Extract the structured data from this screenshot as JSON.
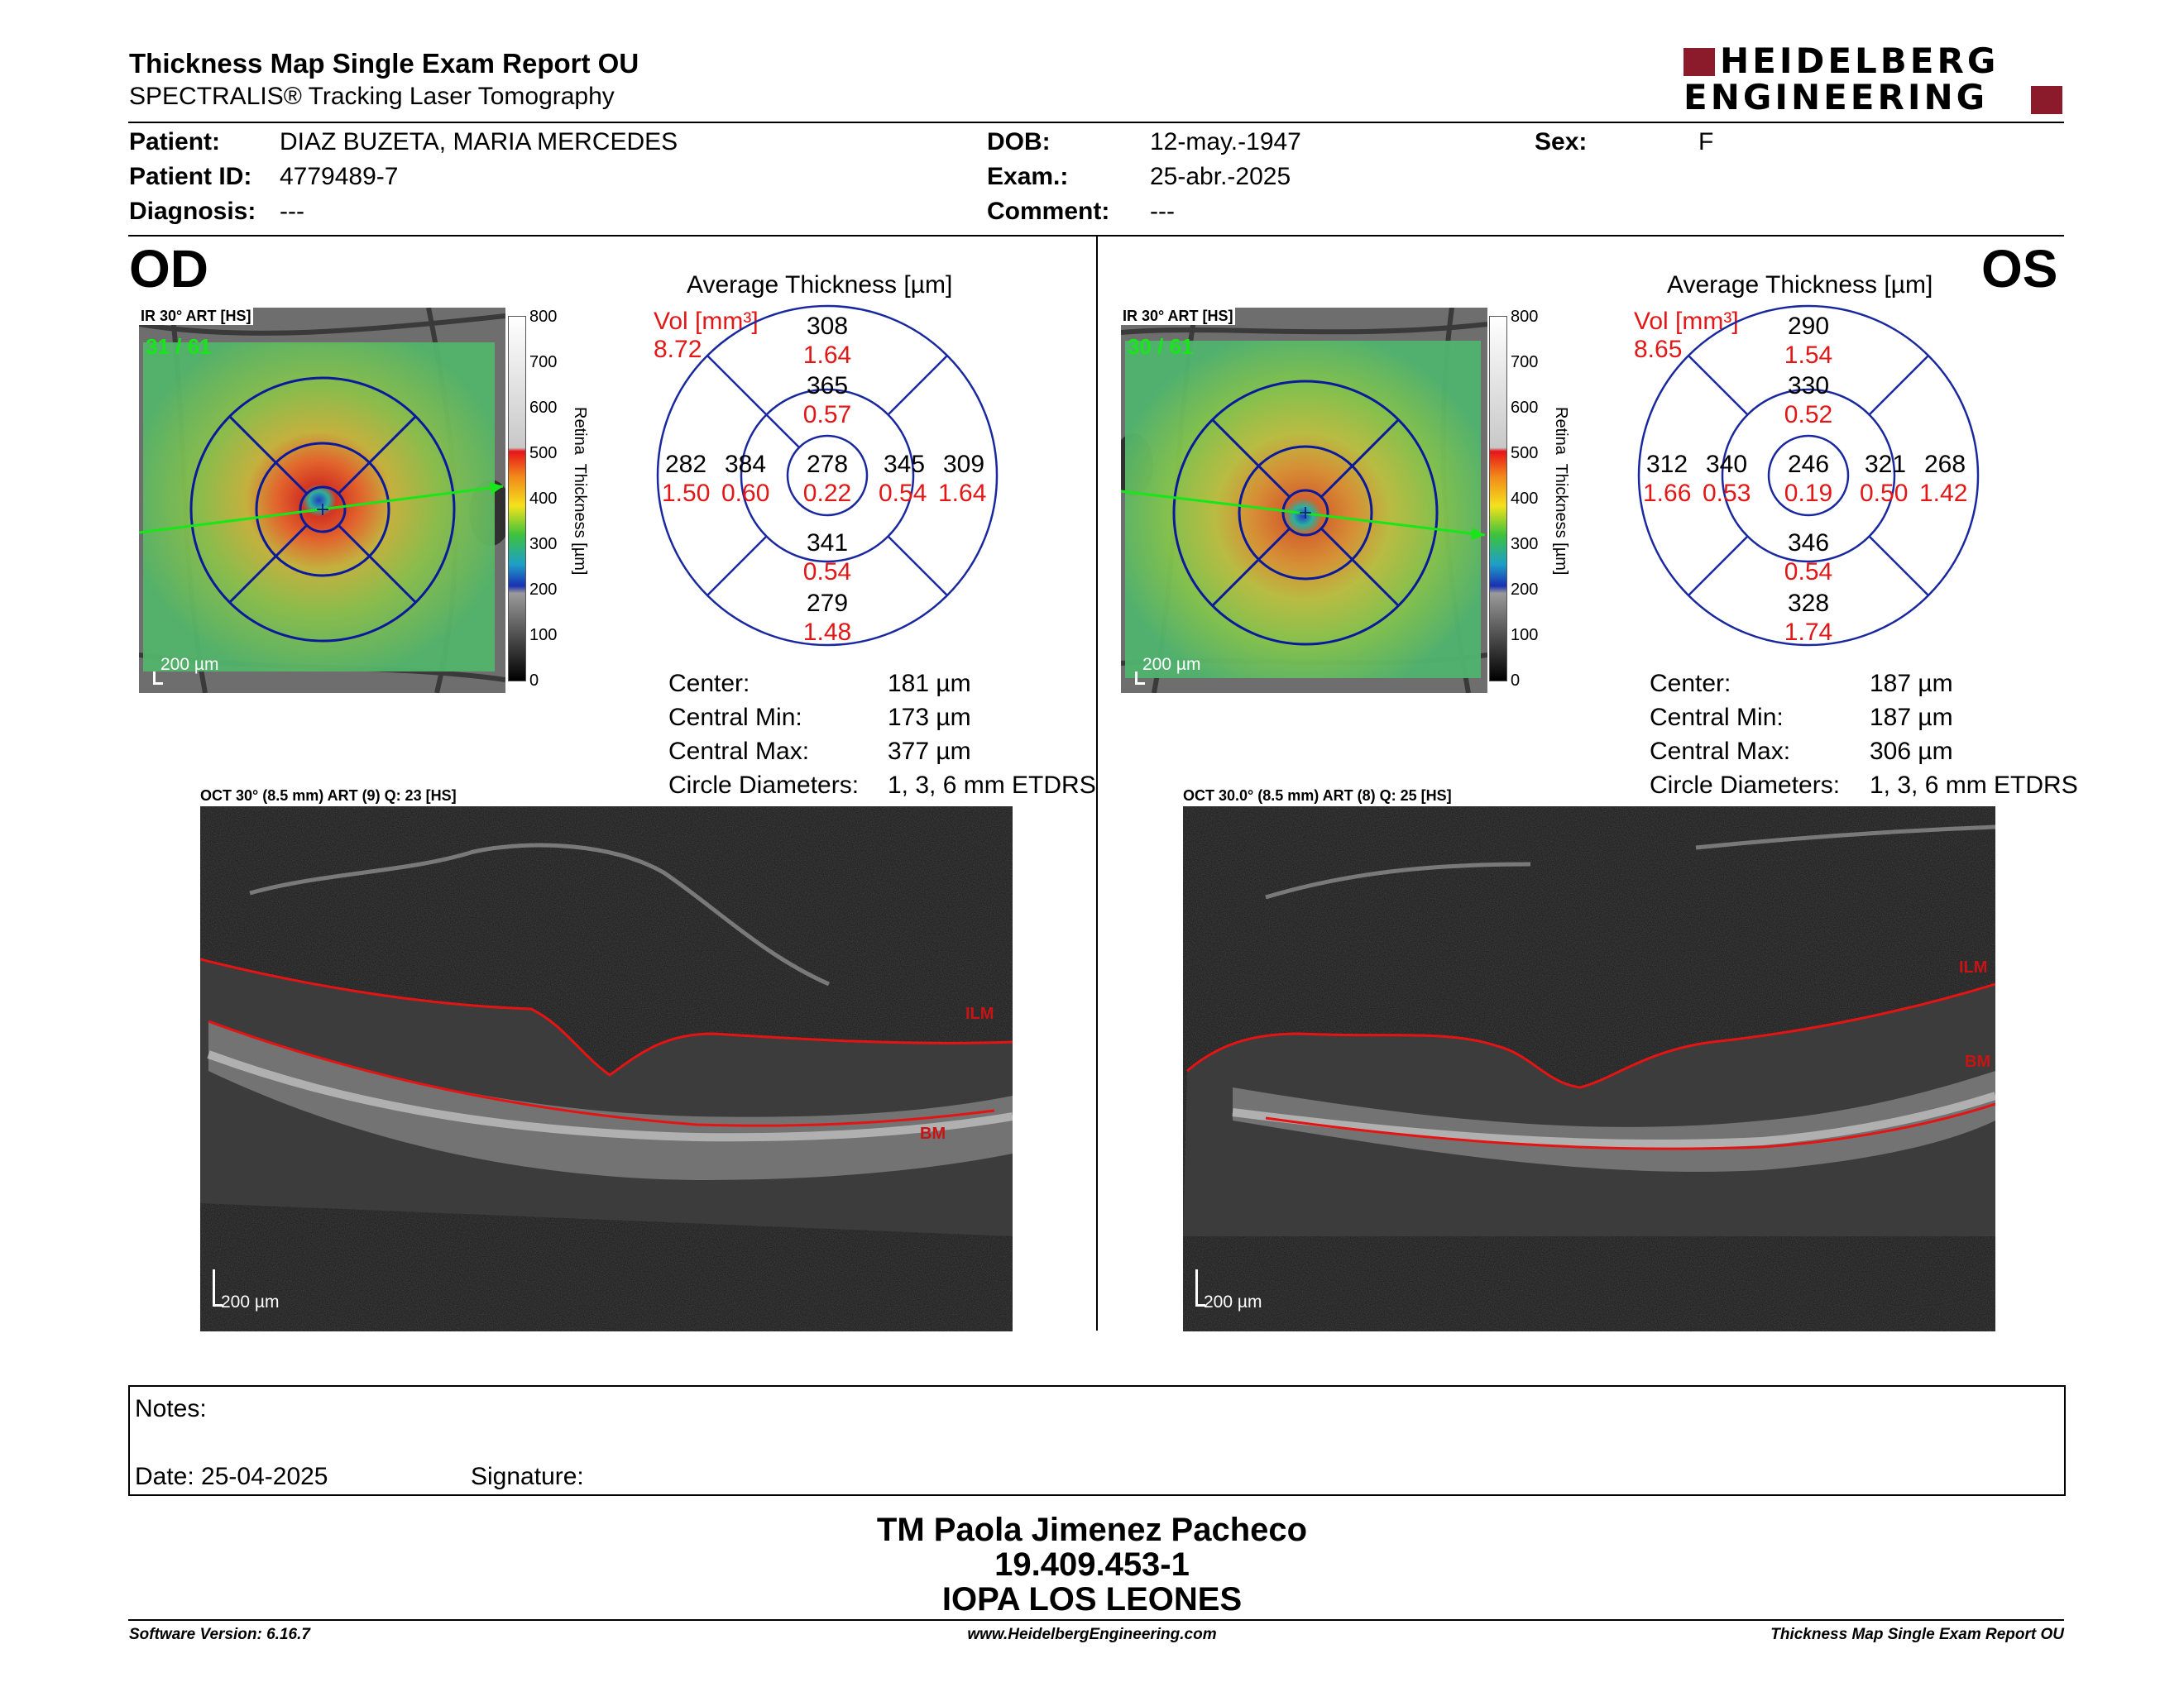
{
  "header": {
    "title": "Thickness Map Single Exam Report OU",
    "subtitle": "SPECTRALIS® Tracking Laser Tomography",
    "logo_line1": "HEIDELBERG",
    "logo_line2": "ENGINEERING",
    "logo_color": "#8b1a2b"
  },
  "patient": {
    "patient_label": "Patient:",
    "patient_value": "DIAZ BUZETA, MARIA MERCEDES",
    "id_label": "Patient ID:",
    "id_value": "4779489-7",
    "diagnosis_label": "Diagnosis:",
    "diagnosis_value": "---",
    "dob_label": "DOB:",
    "dob_value": "12-may.-1947",
    "exam_label": "Exam.:",
    "exam_value": "25-abr.-2025",
    "comment_label": "Comment:",
    "comment_value": "---",
    "sex_label": "Sex:",
    "sex_value": "F"
  },
  "od": {
    "eye": "OD",
    "ir_label": "IR 30° ART [HS]",
    "frames": "31 / 61",
    "scale": "200 µm",
    "colorbar_ticks": [
      "800",
      "700",
      "600",
      "500",
      "400",
      "300",
      "200",
      "100",
      "0"
    ],
    "colorbar_label": "Retina  Thickness [µm]",
    "avg_title": "Average Thickness [µm]",
    "vol_label": "Vol [mm³]",
    "vol_value": "8.72",
    "grid": {
      "outer_top": "308",
      "outer_top_vol": "1.64",
      "inner_top": "365",
      "inner_top_vol": "0.57",
      "outer_left": "282",
      "outer_left_vol": "1.50",
      "inner_left": "384",
      "inner_left_vol": "0.60",
      "center": "278",
      "center_vol": "0.22",
      "inner_right": "345",
      "inner_right_vol": "0.54",
      "outer_right": "309",
      "outer_right_vol": "1.64",
      "inner_bottom": "341",
      "inner_bottom_vol": "0.54",
      "outer_bottom": "279",
      "outer_bottom_vol": "1.48"
    },
    "stats": {
      "center_label": "Center:",
      "center_value": "181 µm",
      "min_label": "Central Min:",
      "min_value": "173 µm",
      "max_label": "Central Max:",
      "max_value": "377 µm",
      "diam_label": "Circle Diameters:",
      "diam_value": "1, 3, 6 mm ETDRS"
    },
    "oct_label": "OCT 30° (8.5 mm) ART (9) Q: 23 [HS]",
    "ilm": "ILM",
    "bm": "BM",
    "oct_scale": "200 µm"
  },
  "os": {
    "eye": "OS",
    "ir_label": "IR 30° ART [HS]",
    "frames": "30 / 61",
    "scale": "200 µm",
    "colorbar_ticks": [
      "800",
      "700",
      "600",
      "500",
      "400",
      "300",
      "200",
      "100",
      "0"
    ],
    "colorbar_label": "Retina  Thickness [µm]",
    "avg_title": "Average Thickness [µm]",
    "vol_label": "Vol [mm³]",
    "vol_value": "8.65",
    "grid": {
      "outer_top": "290",
      "outer_top_vol": "1.54",
      "inner_top": "330",
      "inner_top_vol": "0.52",
      "outer_left": "312",
      "outer_left_vol": "1.66",
      "inner_left": "340",
      "inner_left_vol": "0.53",
      "center": "246",
      "center_vol": "0.19",
      "inner_right": "321",
      "inner_right_vol": "0.50",
      "outer_right": "268",
      "outer_right_vol": "1.42",
      "inner_bottom": "346",
      "inner_bottom_vol": "0.54",
      "outer_bottom": "328",
      "outer_bottom_vol": "1.74"
    },
    "stats": {
      "center_label": "Center:",
      "center_value": "187 µm",
      "min_label": "Central Min:",
      "min_value": "187 µm",
      "max_label": "Central Max:",
      "max_value": "306 µm",
      "diam_label": "Circle Diameters:",
      "diam_value": "1, 3, 6 mm ETDRS"
    },
    "oct_label": "OCT 30.0° (8.5 mm) ART (8) Q: 25 [HS]",
    "ilm": "ILM",
    "bm": "BM",
    "oct_scale": "200 µm"
  },
  "notes": {
    "notes_label": "Notes:",
    "date_label": "Date: 25-04-2025",
    "signature_label": "Signature:"
  },
  "signer": {
    "name": "TM Paola Jimenez Pacheco",
    "rut": "19.409.453-1",
    "institution": "IOPA LOS LEONES"
  },
  "footer": {
    "software": "Software Version: 6.16.7",
    "website": "www.HeidelbergEngineering.com",
    "report": "Thickness Map Single Exam Report OU"
  }
}
